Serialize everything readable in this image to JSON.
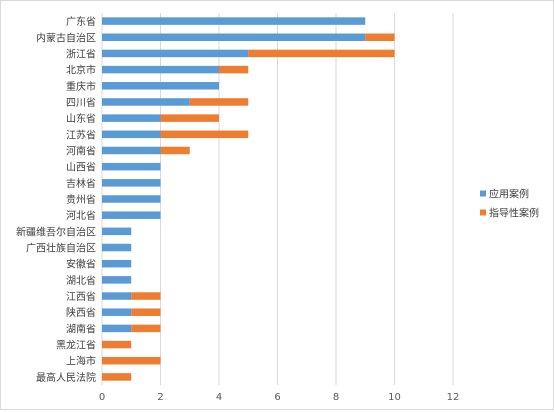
{
  "chart_data": {
    "type": "bar",
    "orientation": "horizontal",
    "stacked": true,
    "categories": [
      "广东省",
      "内蒙古自治区",
      "浙江省",
      "北京市",
      "重庆市",
      "四川省",
      "山东省",
      "江苏省",
      "河南省",
      "山西省",
      "吉林省",
      "贵州省",
      "河北省",
      "新疆维吾尔自治区",
      "广西壮族自治区",
      "安徽省",
      "湖北省",
      "江西省",
      "陕西省",
      "湖南省",
      "黑龙江省",
      "上海市",
      "最高人民法院"
    ],
    "series": [
      {
        "name": "应用案例",
        "color": "#5b9bd5",
        "values": [
          9,
          9,
          5,
          4,
          4,
          3,
          2,
          2,
          2,
          2,
          2,
          2,
          2,
          1,
          1,
          1,
          1,
          1,
          1,
          1,
          0,
          0,
          0
        ]
      },
      {
        "name": "指导性案例",
        "color": "#ed7d31",
        "values": [
          0,
          1,
          5,
          1,
          0,
          2,
          2,
          3,
          1,
          0,
          0,
          0,
          0,
          0,
          0,
          0,
          0,
          1,
          1,
          1,
          1,
          2,
          1
        ]
      }
    ],
    "xlim": [
      0,
      12
    ],
    "xticks": [
      "0",
      "2",
      "4",
      "6",
      "8",
      "10",
      "12"
    ],
    "grid": true,
    "legend_position": "right",
    "title": "",
    "xlabel": "",
    "ylabel": ""
  }
}
